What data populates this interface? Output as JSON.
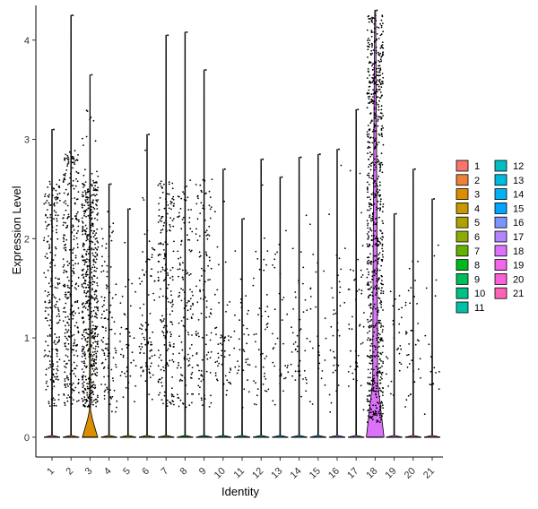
{
  "chart_data": {
    "type": "violin",
    "xlabel": "Identity",
    "ylabel": "Expression Level",
    "ylim": [
      -0.2,
      4.35
    ],
    "yticks": [
      0,
      1,
      2,
      3,
      4
    ],
    "categories": [
      "1",
      "2",
      "3",
      "4",
      "5",
      "6",
      "7",
      "8",
      "9",
      "10",
      "11",
      "12",
      "13",
      "14",
      "15",
      "16",
      "17",
      "18",
      "19",
      "20",
      "21"
    ],
    "colors": [
      "#F8766D",
      "#E88526",
      "#D39200",
      "#B79F00",
      "#93AA00",
      "#5EB300",
      "#00BA38",
      "#00BF74",
      "#00C19F",
      "#00BFC4",
      "#00B9E3",
      "#00ADFA",
      "#619CFF",
      "#AE87FF",
      "#DB72FB",
      "#F564E3",
      "#FF61C3",
      "#FF6C91",
      "#E964FA",
      "#FF65AA",
      "#FF6C91"
    ],
    "violin_colors": [
      "#F8766D",
      "#EC8239",
      "#DB8E00",
      "#C79800",
      "#AEA200",
      "#8FAA00",
      "#64B200",
      "#00B81B",
      "#00BD5C",
      "#00C085",
      "#00C1A7",
      "#00BFC4",
      "#00BADE",
      "#00B2F3",
      "#00A6FF",
      "#7C96FF",
      "#B385FF",
      "#DC71FA",
      "#EF67EB",
      "#FB61D7",
      "#FF63B6"
    ],
    "max_values": [
      3.1,
      4.25,
      3.65,
      2.55,
      2.3,
      3.05,
      4.05,
      4.08,
      3.7,
      2.7,
      2.2,
      2.8,
      2.62,
      2.82,
      2.85,
      2.9,
      3.3,
      4.3,
      2.25,
      2.7,
      2.4
    ],
    "expressing_fraction": [
      0.25,
      0.35,
      0.65,
      0.12,
      0.05,
      0.1,
      0.22,
      0.15,
      0.13,
      0.06,
      0.04,
      0.05,
      0.04,
      0.05,
      0.03,
      0.04,
      0.05,
      0.9,
      0.03,
      0.04,
      0.02
    ],
    "legend": {
      "columns": [
        [
          "1",
          "2",
          "3",
          "4",
          "5",
          "6",
          "7",
          "8",
          "9",
          "10",
          "11"
        ],
        [
          "12",
          "13",
          "14",
          "15",
          "16",
          "17",
          "18",
          "19",
          "20",
          "21"
        ]
      ]
    }
  }
}
